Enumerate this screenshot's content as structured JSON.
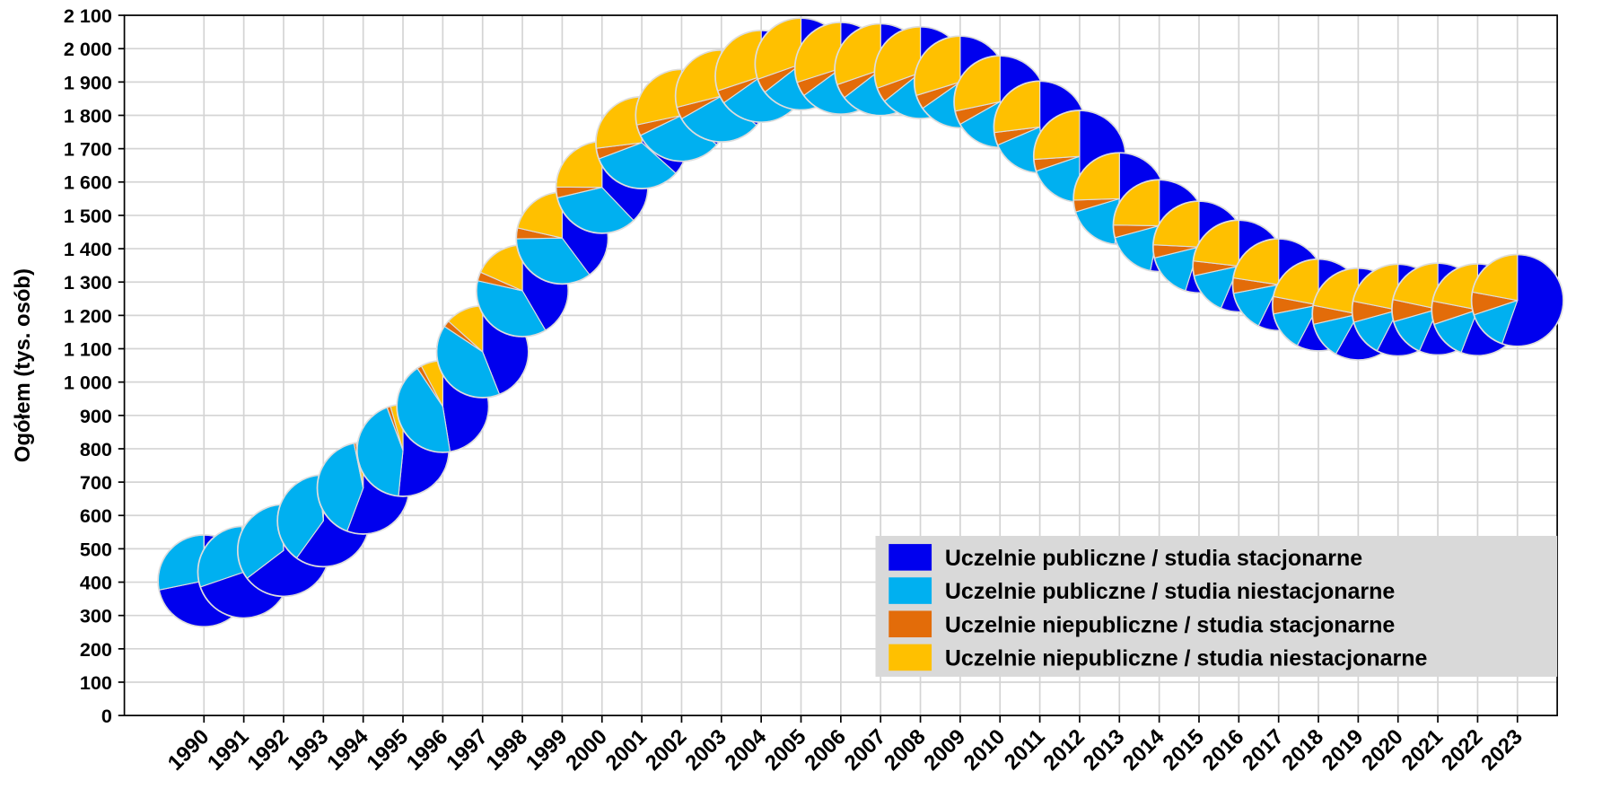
{
  "chart_data": {
    "type": "pie-scatter",
    "y_label": "Ogółem (tys. osób)",
    "x": [
      1990,
      1991,
      1992,
      1993,
      1994,
      1995,
      1996,
      1997,
      1998,
      1999,
      2000,
      2001,
      2002,
      2003,
      2004,
      2005,
      2006,
      2007,
      2008,
      2009,
      2010,
      2011,
      2012,
      2013,
      2014,
      2015,
      2016,
      2017,
      2018,
      2019,
      2020,
      2021,
      2022,
      2023
    ],
    "xlim": [
      1988,
      2024
    ],
    "xticks": [
      1990,
      1991,
      1992,
      1993,
      1994,
      1995,
      1996,
      1997,
      1998,
      1999,
      2000,
      2001,
      2002,
      2003,
      2004,
      2005,
      2006,
      2007,
      2008,
      2009,
      2010,
      2011,
      2012,
      2013,
      2014,
      2015,
      2016,
      2017,
      2018,
      2019,
      2020,
      2021,
      2022,
      2023
    ],
    "ylim": [
      0,
      2100
    ],
    "yticks": [
      0,
      100,
      200,
      300,
      400,
      500,
      600,
      700,
      800,
      900,
      {
        "value": 1000,
        "label": "1 000"
      },
      {
        "value": 1100,
        "label": "1 100"
      },
      {
        "value": 1200,
        "label": "1 200"
      },
      {
        "value": 1300,
        "label": "1 300"
      },
      {
        "value": 1400,
        "label": "1 400"
      },
      {
        "value": 1500,
        "label": "1 500"
      },
      {
        "value": 1600,
        "label": "1 600"
      },
      {
        "value": 1700,
        "label": "1 700"
      },
      {
        "value": 1800,
        "label": "1 800"
      },
      {
        "value": 1900,
        "label": "1 900"
      },
      {
        "value": 2000,
        "label": "2 000"
      },
      {
        "value": 2100,
        "label": "2 100"
      }
    ],
    "grid": true,
    "legend": "lower-right",
    "series": [
      {
        "name": "Uczelnie publiczne / studia stacjonarne",
        "color": "#0000ee",
        "values": [
          290,
          300,
          320,
          350,
          380,
          410,
          440,
          480,
          530,
          570,
          600,
          630,
          650,
          670,
          690,
          720,
          750,
          770,
          790,
          820,
          840,
          850,
          840,
          800,
          780,
          770,
          760,
          740,
          710,
          700,
          700,
          690,
          680,
          690
        ]
      },
      {
        "name": "Uczelnie publiczne / studia niestacjonarne",
        "color": "#00b0f0",
        "values": [
          114,
          127,
          170,
          225,
          280,
          340,
          400,
          440,
          470,
          500,
          530,
          560,
          570,
          570,
          560,
          540,
          510,
          480,
          450,
          420,
          390,
          360,
          330,
          290,
          260,
          230,
          205,
          190,
          175,
          160,
          160,
          170,
          170,
          180
        ]
      },
      {
        "name": "Uczelnie niepubliczne / studia stacjonarne",
        "color": "#e36c09",
        "values": [
          0,
          1,
          2,
          3,
          5,
          10,
          15,
          25,
          40,
          55,
          60,
          65,
          70,
          80,
          90,
          100,
          100,
          100,
          100,
          95,
          90,
          80,
          70,
          65,
          65,
          65,
          70,
          70,
          75,
          80,
          90,
          95,
          100,
          100
        ]
      },
      {
        "name": "Uczelnie niepubliczne / studia niestacjonarne",
        "color": "#ffc000",
        "values": [
          0,
          2,
          3,
          6,
          17,
          35,
          72,
          146,
          234,
          307,
          394,
          463,
          510,
          538,
          577,
          594,
          581,
          587,
          588,
          565,
          521,
          475,
          437,
          395,
          364,
          340,
          313,
          292,
          271,
          264,
          266,
          264,
          267,
          275
        ]
      }
    ]
  }
}
